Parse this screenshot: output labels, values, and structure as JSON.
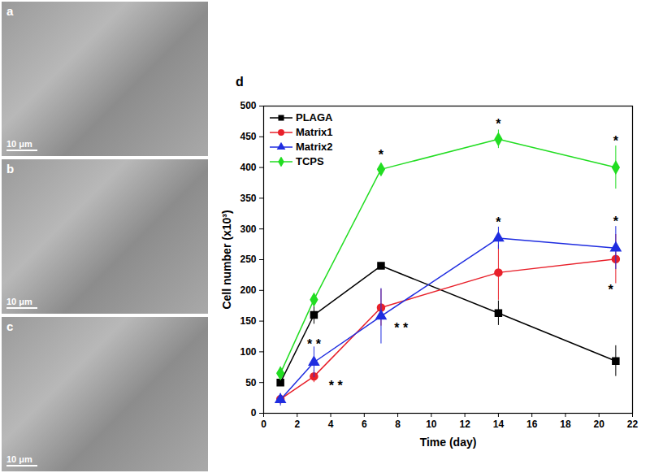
{
  "panels": [
    {
      "label": "a",
      "scale_bar": "10 μm"
    },
    {
      "label": "b",
      "scale_bar": "10 μm"
    },
    {
      "label": "c",
      "scale_bar": "10 μm"
    },
    {
      "label": "d"
    }
  ],
  "chart_data": {
    "type": "line",
    "x": [
      1,
      3,
      7,
      14,
      21
    ],
    "series": [
      {
        "name": "PLAGA",
        "color": "#000000",
        "marker": "square",
        "values": [
          50,
          160,
          240,
          163,
          85
        ],
        "errors": [
          5,
          15,
          5,
          20,
          25
        ]
      },
      {
        "name": "Matrix1",
        "color": "#e8202a",
        "marker": "circle",
        "values": [
          23,
          60,
          172,
          229,
          251
        ],
        "errors": [
          8,
          10,
          30,
          45,
          40
        ]
      },
      {
        "name": "Matrix2",
        "color": "#1f2de0",
        "marker": "triangle",
        "values": [
          22,
          83,
          158,
          285,
          269
        ],
        "errors": [
          10,
          25,
          45,
          18,
          35
        ]
      },
      {
        "name": "TCPS",
        "color": "#22dd22",
        "marker": "diamond",
        "values": [
          65,
          185,
          397,
          446,
          400
        ],
        "errors": [
          10,
          10,
          5,
          15,
          35
        ]
      }
    ],
    "x_label": "Time (day)",
    "y_label": "Cell number (x10³)",
    "xlim": [
      0,
      22
    ],
    "xticks": [
      0,
      2,
      4,
      6,
      8,
      10,
      12,
      14,
      16,
      18,
      20,
      22
    ],
    "ylim": [
      0,
      500
    ],
    "yticks": [
      0,
      50,
      100,
      150,
      200,
      250,
      300,
      350,
      400,
      450,
      500
    ],
    "legend": "upper left",
    "annotations": [
      {
        "x": 7,
        "y": 420,
        "text": "*"
      },
      {
        "x": 14,
        "y": 470,
        "text": "*"
      },
      {
        "x": 21,
        "y": 443,
        "text": "*"
      },
      {
        "x": 14,
        "y": 310,
        "text": "*"
      },
      {
        "x": 21,
        "y": 312,
        "text": "*"
      },
      {
        "x": 20.7,
        "y": 200,
        "text": "*"
      },
      {
        "x": 3,
        "y": 112,
        "text": "* *"
      },
      {
        "x": 4.3,
        "y": 45,
        "text": "* *"
      },
      {
        "x": 8.2,
        "y": 138,
        "text": "* *"
      }
    ]
  }
}
